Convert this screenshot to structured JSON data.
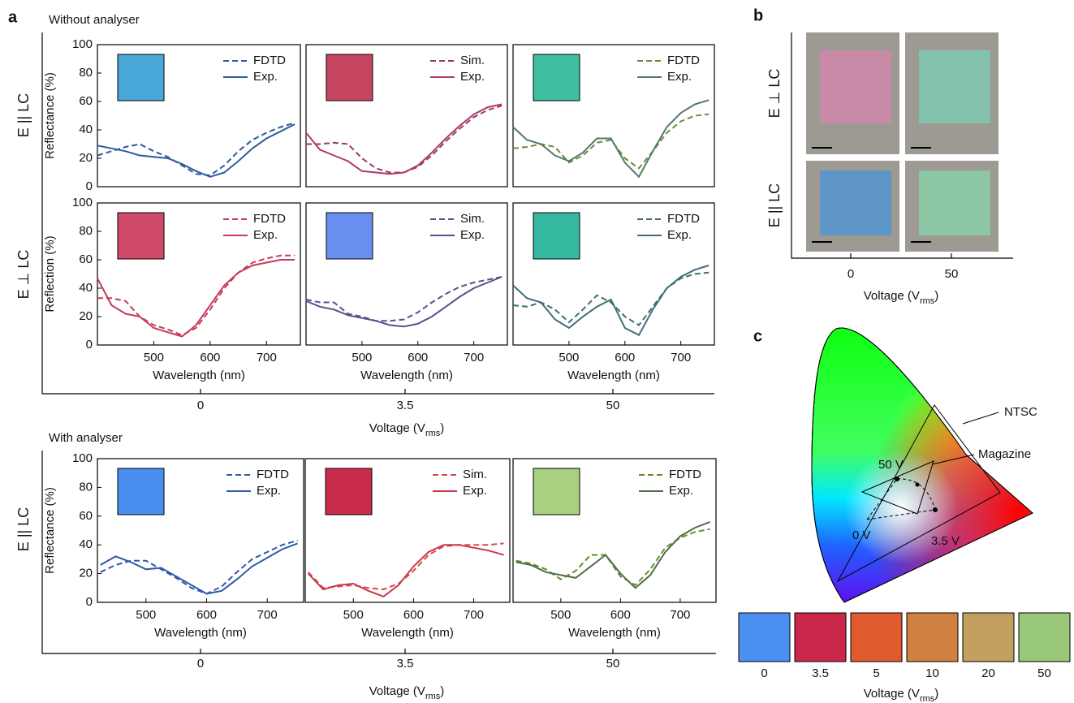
{
  "chart_data": [
    {
      "type": "line",
      "ylabel": "Reflectance (%)",
      "inset_color": "#4aa8d8",
      "xlim": [
        400,
        760
      ],
      "ylim": [
        0,
        100
      ],
      "yticks": [
        0,
        20,
        40,
        60,
        80,
        100
      ],
      "x": [
        400,
        425,
        450,
        475,
        500,
        525,
        550,
        575,
        600,
        625,
        650,
        675,
        700,
        725,
        750
      ],
      "series": [
        {
          "name": "FDTD",
          "color": "#2f5a9e",
          "dash": true,
          "values": [
            22,
            25,
            28,
            30,
            25,
            21,
            15,
            9,
            8,
            15,
            25,
            33,
            38,
            42,
            45
          ]
        },
        {
          "name": "Exp.",
          "color": "#2f5a9e",
          "dash": false,
          "values": [
            29,
            27,
            25,
            22,
            21,
            20,
            16,
            11,
            7,
            10,
            18,
            27,
            34,
            39,
            44
          ]
        }
      ]
    },
    {
      "type": "line",
      "inset_color": "#c74560",
      "xlim": [
        400,
        760
      ],
      "ylim": [
        0,
        100
      ],
      "x": [
        400,
        425,
        450,
        475,
        500,
        525,
        550,
        575,
        600,
        625,
        650,
        675,
        700,
        725,
        750
      ],
      "series": [
        {
          "name": "Sim.",
          "color": "#9b3570",
          "dash": true,
          "values": [
            30,
            30,
            31,
            30,
            20,
            13,
            10,
            10,
            14,
            22,
            32,
            41,
            49,
            54,
            57
          ]
        },
        {
          "name": "Exp.",
          "color": "#b13a68",
          "dash": false,
          "values": [
            38,
            26,
            22,
            18,
            11,
            10,
            9,
            10,
            15,
            24,
            34,
            43,
            51,
            56,
            58
          ]
        }
      ]
    },
    {
      "type": "line",
      "inset_color": "#3fbfa0",
      "xlim": [
        400,
        760
      ],
      "ylim": [
        0,
        100
      ],
      "x": [
        400,
        425,
        450,
        475,
        500,
        525,
        550,
        575,
        600,
        625,
        650,
        675,
        700,
        725,
        750
      ],
      "series": [
        {
          "name": "FDTD",
          "color": "#6f8a3a",
          "dash": true,
          "values": [
            27,
            28,
            30,
            28,
            17,
            22,
            31,
            33,
            20,
            13,
            25,
            38,
            46,
            50,
            51
          ]
        },
        {
          "name": "Exp.",
          "color": "#4f7b6a",
          "dash": false,
          "values": [
            42,
            33,
            30,
            22,
            18,
            24,
            34,
            34,
            17,
            7,
            25,
            42,
            52,
            58,
            61
          ]
        }
      ]
    },
    {
      "type": "line",
      "ylabel": "Reflection (%)",
      "xlabel": "Wavelength (nm)",
      "inset_color": "#d04a6a",
      "xlim": [
        400,
        760
      ],
      "ylim": [
        0,
        100
      ],
      "yticks": [
        0,
        20,
        40,
        60,
        80,
        100
      ],
      "xticks": [
        500,
        600,
        700
      ],
      "x": [
        400,
        425,
        450,
        475,
        500,
        525,
        550,
        575,
        600,
        625,
        650,
        675,
        700,
        725,
        750
      ],
      "series": [
        {
          "name": "FDTD",
          "color": "#c83a5a",
          "dash": true,
          "values": [
            33,
            33,
            31,
            20,
            14,
            11,
            7,
            12,
            25,
            40,
            51,
            58,
            61,
            63,
            63
          ]
        },
        {
          "name": "Exp.",
          "color": "#c83a5a",
          "dash": false,
          "values": [
            47,
            28,
            22,
            20,
            12,
            9,
            6,
            14,
            28,
            42,
            51,
            56,
            58,
            60,
            60
          ]
        }
      ]
    },
    {
      "type": "line",
      "xlabel": "Wavelength (nm)",
      "inset_color": "#6a8ef0",
      "xlim": [
        400,
        760
      ],
      "ylim": [
        0,
        100
      ],
      "xticks": [
        500,
        600,
        700
      ],
      "x": [
        400,
        425,
        450,
        475,
        500,
        525,
        550,
        575,
        600,
        625,
        650,
        675,
        700,
        725,
        750
      ],
      "series": [
        {
          "name": "Sim.",
          "color": "#5a4f8e",
          "dash": true,
          "values": [
            32,
            30,
            30,
            22,
            20,
            17,
            17,
            18,
            23,
            30,
            36,
            41,
            44,
            46,
            48
          ]
        },
        {
          "name": "Exp.",
          "color": "#5a4f8e",
          "dash": false,
          "values": [
            31,
            27,
            25,
            21,
            19,
            17,
            14,
            13,
            15,
            20,
            27,
            34,
            40,
            44,
            48
          ]
        }
      ]
    },
    {
      "type": "line",
      "xlabel": "Wavelength (nm)",
      "inset_color": "#35b8a0",
      "xlim": [
        400,
        760
      ],
      "ylim": [
        0,
        100
      ],
      "xticks": [
        500,
        600,
        700
      ],
      "x": [
        400,
        425,
        450,
        475,
        500,
        525,
        550,
        575,
        600,
        625,
        650,
        675,
        700,
        725,
        750
      ],
      "series": [
        {
          "name": "FDTD",
          "color": "#3f6e6a",
          "dash": true,
          "values": [
            28,
            27,
            30,
            25,
            16,
            25,
            35,
            30,
            20,
            14,
            27,
            40,
            47,
            50,
            51
          ]
        },
        {
          "name": "Exp.",
          "color": "#3f6e7a",
          "dash": false,
          "values": [
            42,
            33,
            30,
            18,
            12,
            20,
            27,
            32,
            12,
            7,
            25,
            40,
            48,
            53,
            56
          ]
        }
      ]
    },
    {
      "type": "line",
      "ylabel": "Reflectance (%)",
      "xlabel": "Wavelength (nm)",
      "inset_color": "#4a8ef0",
      "xlim": [
        420,
        760
      ],
      "ylim": [
        0,
        100
      ],
      "yticks": [
        0,
        20,
        40,
        60,
        80,
        100
      ],
      "xticks": [
        500,
        600,
        700
      ],
      "x": [
        425,
        450,
        475,
        500,
        525,
        550,
        575,
        600,
        625,
        650,
        675,
        700,
        725,
        750
      ],
      "series": [
        {
          "name": "FDTD",
          "color": "#2f5aa8",
          "dash": true,
          "values": [
            21,
            26,
            29,
            29,
            23,
            17,
            10,
            6,
            11,
            21,
            30,
            35,
            40,
            43
          ]
        },
        {
          "name": "Exp.",
          "color": "#2f5aa8",
          "dash": false,
          "values": [
            26,
            32,
            28,
            23,
            24,
            18,
            12,
            6,
            8,
            16,
            25,
            31,
            37,
            41
          ]
        }
      ]
    },
    {
      "type": "line",
      "xlabel": "Wavelength (nm)",
      "inset_color": "#c92c4a",
      "xlim": [
        420,
        760
      ],
      "ylim": [
        0,
        100
      ],
      "xticks": [
        500,
        600,
        700
      ],
      "x": [
        425,
        450,
        475,
        500,
        525,
        550,
        575,
        600,
        625,
        650,
        675,
        700,
        725,
        750
      ],
      "series": [
        {
          "name": "Sim.",
          "color": "#d8484a",
          "dash": true,
          "values": [
            21,
            10,
            11,
            12,
            10,
            9,
            13,
            22,
            33,
            39,
            40,
            40,
            40,
            41
          ]
        },
        {
          "name": "Exp.",
          "color": "#c8384a",
          "dash": false,
          "values": [
            20,
            9,
            12,
            13,
            8,
            4,
            12,
            25,
            35,
            40,
            40,
            38,
            36,
            33
          ]
        }
      ]
    },
    {
      "type": "line",
      "xlabel": "Wavelength (nm)",
      "inset_color": "#a8d080",
      "xlim": [
        420,
        760
      ],
      "ylim": [
        0,
        100
      ],
      "xticks": [
        500,
        600,
        700
      ],
      "x": [
        425,
        450,
        475,
        500,
        525,
        550,
        575,
        600,
        625,
        650,
        675,
        700,
        725,
        750
      ],
      "series": [
        {
          "name": "FDTD",
          "color": "#6a8a2a",
          "dash": true,
          "values": [
            29,
            27,
            23,
            16,
            22,
            33,
            33,
            18,
            12,
            23,
            38,
            45,
            49,
            51
          ]
        },
        {
          "name": "Exp.",
          "color": "#4f6e4a",
          "dash": false,
          "values": [
            28,
            26,
            21,
            19,
            17,
            25,
            33,
            20,
            10,
            19,
            35,
            46,
            52,
            56
          ]
        }
      ]
    }
  ],
  "figure": {
    "letters": [
      "a",
      "b",
      "c"
    ],
    "section_titles": [
      "Without analyser",
      "With analyser"
    ],
    "a_row_labels": [
      "E || LC",
      "E ⊥ LC"
    ],
    "a_bottom_row_label": "E || LC",
    "b_row_labels": [
      "E ⊥ LC",
      "E || LC"
    ],
    "a_top_axis": {
      "ticks": [
        "0",
        "3.5",
        "50"
      ],
      "label": {
        "main": "Voltage (V",
        "sub": "rms",
        "end": ")"
      }
    },
    "a_bottom_axis": {
      "ticks": [
        "0",
        "3.5",
        "50"
      ],
      "label": {
        "main": "Voltage (V",
        "sub": "rms",
        "end": ")"
      }
    },
    "b_axis": {
      "ticks": [
        "0",
        "50"
      ],
      "label": {
        "main": "Voltage (V",
        "sub": "rms",
        "end": ")"
      }
    },
    "c_axis": {
      "ticks": [
        "0",
        "3.5",
        "5",
        "10",
        "20",
        "50"
      ],
      "colors": [
        "#4b8ff0",
        "#c9284a",
        "#e05a30",
        "#d08040",
        "#c4a060",
        "#98c878"
      ],
      "label": {
        "main": "Voltage (V",
        "sub": "rms",
        "end": ")"
      }
    },
    "c_labels": {
      "ntsc": "NTSC",
      "magazine": "Magazine",
      "v0": "0 V",
      "v35": "3.5 V",
      "v50": "50 V"
    }
  }
}
